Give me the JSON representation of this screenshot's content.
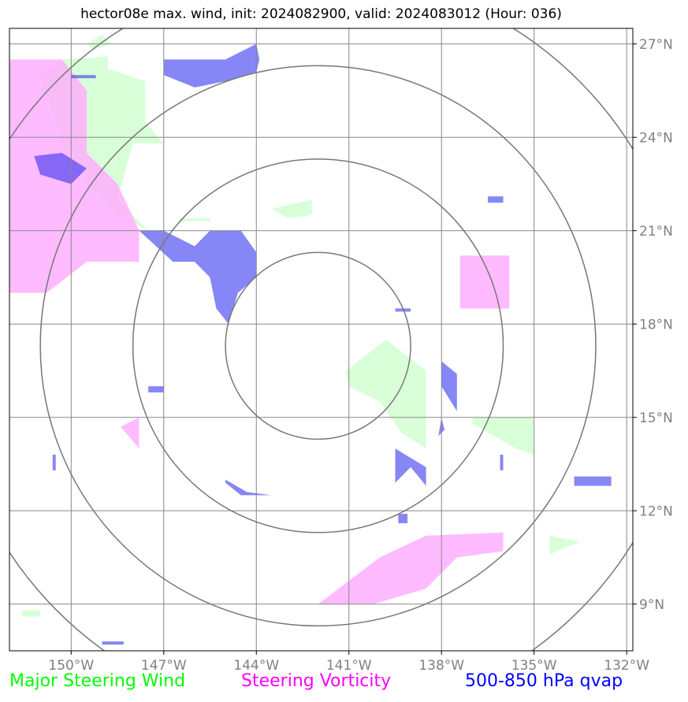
{
  "title": "hector08e max. wind, init: 2024082900, valid: 2024083012 (Hour: 036)",
  "map": {
    "lat_range": [
      7.5,
      27.5
    ],
    "lon_range": [
      -152,
      -131.8
    ],
    "storm_center": {
      "lon": -142.0,
      "lat": 17.3
    },
    "range_rings_deg": [
      3,
      6,
      9,
      12
    ],
    "lon_ticks": [
      {
        "value": -150,
        "label": "150°W"
      },
      {
        "value": -147,
        "label": "147°W"
      },
      {
        "value": -144,
        "label": "144°W"
      },
      {
        "value": -141,
        "label": "141°W"
      },
      {
        "value": -138,
        "label": "138°W"
      },
      {
        "value": -135,
        "label": "135°W"
      },
      {
        "value": -132,
        "label": "132°W"
      }
    ],
    "lat_ticks": [
      {
        "value": 27,
        "label": "27°N"
      },
      {
        "value": 24,
        "label": "24°N"
      },
      {
        "value": 21,
        "label": "21°N"
      },
      {
        "value": 18,
        "label": "18°N"
      },
      {
        "value": 15,
        "label": "15°N"
      },
      {
        "value": 12,
        "label": "12°N"
      },
      {
        "value": 9,
        "label": "9°N"
      }
    ],
    "colors": {
      "wind": "#ccffcc",
      "vorticity": "#ffaaff",
      "qvap": "#2222ee",
      "grid": "#888888",
      "rings": "#777777",
      "tick_labels": "#808080"
    },
    "regions": {
      "wind": [
        [
          [
            -150.3,
            26.5
          ],
          [
            -148.8,
            26.6
          ],
          [
            -148.8,
            26.2
          ],
          [
            -147.6,
            25.8
          ],
          [
            -147.6,
            24.5
          ],
          [
            -147.0,
            23.8
          ],
          [
            -148.0,
            23.8
          ],
          [
            -148.5,
            22.0
          ],
          [
            -147.5,
            21.0
          ],
          [
            -148.5,
            21.5
          ],
          [
            -150.0,
            23.0
          ],
          [
            -151.0,
            26.0
          ]
        ],
        [
          [
            -149.5,
            27.0
          ],
          [
            -149.0,
            27.3
          ],
          [
            -148.7,
            27.0
          ],
          [
            -149.3,
            26.8
          ]
        ],
        [
          [
            -143.5,
            21.7
          ],
          [
            -142.2,
            22.0
          ],
          [
            -142.2,
            21.5
          ],
          [
            -143.0,
            21.4
          ]
        ],
        [
          [
            -146.5,
            21.4
          ],
          [
            -145.5,
            21.4
          ],
          [
            -145.5,
            21.3
          ],
          [
            -146.5,
            21.3
          ]
        ],
        [
          [
            -141.1,
            16.5
          ],
          [
            -139.8,
            17.5
          ],
          [
            -138.5,
            16.5
          ],
          [
            -138.5,
            14.0
          ],
          [
            -139.3,
            14.5
          ],
          [
            -140.0,
            15.5
          ],
          [
            -141.0,
            16.0
          ]
        ],
        [
          [
            -137.0,
            15.0
          ],
          [
            -135.0,
            15.0
          ],
          [
            -135.0,
            13.8
          ],
          [
            -135.6,
            14.0
          ],
          [
            -137.0,
            14.8
          ]
        ],
        [
          [
            -134.5,
            11.2
          ],
          [
            -133.5,
            11.0
          ],
          [
            -134.5,
            10.6
          ]
        ],
        [
          [
            -151.6,
            8.8
          ],
          [
            -151.0,
            8.8
          ],
          [
            -151.0,
            8.6
          ],
          [
            -151.6,
            8.6
          ]
        ]
      ],
      "vorticity": [
        [
          [
            -152,
            26.5
          ],
          [
            -150.3,
            26.5
          ],
          [
            -149.5,
            25.5
          ],
          [
            -149.5,
            23.5
          ],
          [
            -148.5,
            22.5
          ],
          [
            -147.8,
            21.0
          ],
          [
            -147.8,
            20.0
          ],
          [
            -149.5,
            20.0
          ],
          [
            -150.8,
            19.0
          ],
          [
            -152,
            19.0
          ]
        ],
        [
          [
            -137.4,
            20.2
          ],
          [
            -135.8,
            20.2
          ],
          [
            -135.8,
            18.5
          ],
          [
            -137.4,
            18.5
          ]
        ],
        [
          [
            -148.4,
            14.7
          ],
          [
            -147.8,
            15.0
          ],
          [
            -147.8,
            14.0
          ]
        ],
        [
          [
            -142.0,
            9.0
          ],
          [
            -140.0,
            10.5
          ],
          [
            -138.5,
            11.2
          ],
          [
            -136.0,
            11.3
          ],
          [
            -136.0,
            10.7
          ],
          [
            -137.5,
            10.5
          ],
          [
            -138.5,
            9.5
          ],
          [
            -140.2,
            9.0
          ]
        ]
      ],
      "qvap": [
        [
          [
            -151.2,
            23.4
          ],
          [
            -150.3,
            23.5
          ],
          [
            -149.5,
            23.0
          ],
          [
            -150.0,
            22.5
          ],
          [
            -151.0,
            22.8
          ]
        ],
        [
          [
            -147.8,
            21.0
          ],
          [
            -147.0,
            21.0
          ],
          [
            -146.0,
            20.5
          ],
          [
            -145.5,
            21.0
          ],
          [
            -144.5,
            21.0
          ],
          [
            -144.0,
            20.3
          ],
          [
            -144.0,
            19.5
          ],
          [
            -144.6,
            19.0
          ],
          [
            -144.9,
            18.0
          ],
          [
            -145.3,
            18.5
          ],
          [
            -145.5,
            19.5
          ],
          [
            -146.0,
            20.0
          ],
          [
            -146.7,
            20.0
          ]
        ],
        [
          [
            -147.0,
            26.5
          ],
          [
            -145.0,
            26.5
          ],
          [
            -144.0,
            27.0
          ],
          [
            -143.9,
            26.5
          ],
          [
            -144.0,
            26.1
          ],
          [
            -145.0,
            25.8
          ],
          [
            -146.0,
            25.6
          ],
          [
            -147.0,
            26.0
          ]
        ],
        [
          [
            -150.0,
            26.0
          ],
          [
            -149.2,
            26.0
          ],
          [
            -149.2,
            25.9
          ],
          [
            -150.0,
            25.9
          ]
        ],
        [
          [
            -138.0,
            16.8
          ],
          [
            -137.5,
            16.4
          ],
          [
            -137.5,
            15.2
          ],
          [
            -138.0,
            16.0
          ]
        ],
        [
          [
            -139.5,
            14.0
          ],
          [
            -138.5,
            13.4
          ],
          [
            -138.5,
            12.8
          ],
          [
            -139.0,
            13.4
          ],
          [
            -139.5,
            12.9
          ]
        ],
        [
          [
            -145.0,
            13.0
          ],
          [
            -144.3,
            12.6
          ],
          [
            -143.5,
            12.5
          ],
          [
            -144.5,
            12.5
          ],
          [
            -145.0,
            12.9
          ]
        ],
        [
          [
            -138.0,
            15.0
          ],
          [
            -137.9,
            14.6
          ],
          [
            -138.1,
            14.4
          ]
        ],
        [
          [
            -133.7,
            13.1
          ],
          [
            -132.5,
            13.1
          ],
          [
            -132.5,
            12.8
          ],
          [
            -133.7,
            12.8
          ]
        ],
        [
          [
            -136.5,
            22.1
          ],
          [
            -136.0,
            22.1
          ],
          [
            -136.0,
            21.9
          ],
          [
            -136.5,
            21.9
          ]
        ],
        [
          [
            -147.5,
            16.0
          ],
          [
            -147.0,
            16.0
          ],
          [
            -147.0,
            15.8
          ],
          [
            -147.5,
            15.8
          ]
        ],
        [
          [
            -150.6,
            13.8
          ],
          [
            -150.5,
            13.8
          ],
          [
            -150.5,
            13.3
          ],
          [
            -150.6,
            13.3
          ]
        ],
        [
          [
            -139.4,
            11.9
          ],
          [
            -139.1,
            11.9
          ],
          [
            -139.1,
            11.6
          ],
          [
            -139.4,
            11.6
          ]
        ],
        [
          [
            -139.5,
            18.5
          ],
          [
            -139.0,
            18.5
          ],
          [
            -139.0,
            18.4
          ],
          [
            -139.5,
            18.4
          ]
        ],
        [
          [
            -136.1,
            13.8
          ],
          [
            -136.0,
            13.8
          ],
          [
            -136.0,
            13.3
          ],
          [
            -136.1,
            13.3
          ]
        ],
        [
          [
            -149.0,
            7.8
          ],
          [
            -148.3,
            7.8
          ],
          [
            -148.3,
            7.7
          ],
          [
            -149.0,
            7.7
          ]
        ]
      ]
    }
  },
  "legend": {
    "wind": {
      "label": "Major Steering Wind",
      "color": "#00ff00"
    },
    "vorticity": {
      "label": "Steering Vorticity",
      "color": "#ff00ff"
    },
    "qvap": {
      "label": "500-850 hPa qvap",
      "color": "#0000ff"
    }
  }
}
